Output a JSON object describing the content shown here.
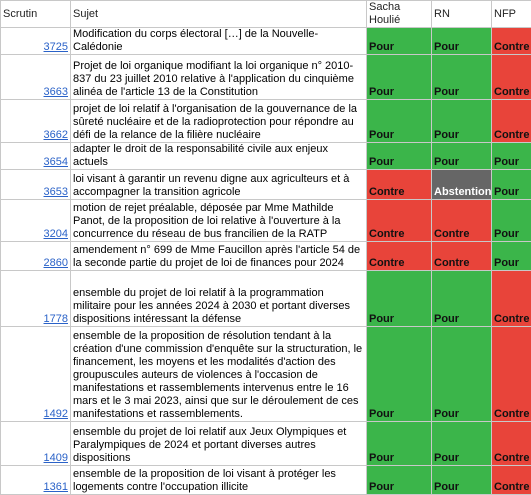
{
  "table": {
    "header": [
      "Scrutin",
      "Sujet",
      "Sacha Houlié",
      "RN",
      "NFP"
    ],
    "rows": [
      {
        "scrutin": "3725",
        "sujet": "Modification du corps électoral […] de la Nouvelle-Calédonie",
        "votes": [
          {
            "text": "Pour",
            "color": "#3bb54a"
          },
          {
            "text": "Pour",
            "color": "#3bb54a"
          },
          {
            "text": "Contre",
            "color": "#e8443a"
          }
        ]
      },
      {
        "scrutin": "3663",
        "sujet": "Projet de loi organique modifiant la loi organique n° 2010-837 du 23 juillet 2010 relative à l'application du cinquième alinéa de l'article 13 de la Constitution",
        "votes": [
          {
            "text": "Pour",
            "color": "#3bb54a"
          },
          {
            "text": "Pour",
            "color": "#3bb54a"
          },
          {
            "text": "Contre",
            "color": "#e8443a"
          }
        ]
      },
      {
        "scrutin": "3662",
        "sujet": "projet de loi relatif à l'organisation de la gouvernance de la sûreté nucléaire et de la radioprotection pour répondre au défi de la relance de la filière nucléaire",
        "votes": [
          {
            "text": "Pour",
            "color": "#3bb54a"
          },
          {
            "text": "Pour",
            "color": "#3bb54a"
          },
          {
            "text": "Contre",
            "color": "#e8443a"
          }
        ]
      },
      {
        "scrutin": "3654",
        "sujet": "adapter le droit de la responsabilité civile aux enjeux actuels",
        "votes": [
          {
            "text": "Pour",
            "color": "#3bb54a"
          },
          {
            "text": "Pour",
            "color": "#3bb54a"
          },
          {
            "text": "Pour",
            "color": "#3bb54a"
          }
        ]
      },
      {
        "scrutin": "3653",
        "sujet": "loi visant à garantir un revenu digne aux agriculteurs et à accompagner la transition agricole",
        "votes": [
          {
            "text": "Contre",
            "color": "#e8443a"
          },
          {
            "text": "Abstention",
            "color": "#666666"
          },
          {
            "text": "Pour",
            "color": "#3bb54a"
          }
        ]
      },
      {
        "scrutin": "3204",
        "sujet": "motion de rejet préalable, déposée par Mme Mathilde Panot, de la proposition de loi relative à l'ouverture à la concurrence du réseau de bus francilien de la RATP",
        "votes": [
          {
            "text": "Contre",
            "color": "#e8443a"
          },
          {
            "text": "Contre",
            "color": "#e8443a"
          },
          {
            "text": "Pour",
            "color": "#3bb54a"
          }
        ]
      },
      {
        "scrutin": "2860",
        "sujet": "amendement n° 699 de Mme Faucillon après l'article 54 de la seconde partie du projet de loi de finances pour 2024",
        "votes": [
          {
            "text": "Contre",
            "color": "#e8443a"
          },
          {
            "text": "Contre",
            "color": "#e8443a"
          },
          {
            "text": "Pour",
            "color": "#3bb54a"
          }
        ]
      },
      {
        "scrutin": "1778",
        "sujet": "ensemble du projet de loi relatif à la programmation militaire pour les années 2024 à 2030 et portant diverses dispositions intéressant la défense",
        "votes": [
          {
            "text": "Pour",
            "color": "#3bb54a"
          },
          {
            "text": "Pour",
            "color": "#3bb54a"
          },
          {
            "text": "Contre",
            "color": "#e8443a"
          }
        ]
      },
      {
        "scrutin": "1492",
        "sujet": "ensemble de la proposition de résolution tendant à la création d'une commission d'enquête sur la structuration, le financement, les moyens et les modalités d'action des groupuscules auteurs de violences à l'occasion de manifestations et rassemblements intervenus entre le 16 mars et le 3 mai 2023, ainsi que sur le déroulement de ces manifestations et rassemblements.",
        "votes": [
          {
            "text": "Pour",
            "color": "#3bb54a"
          },
          {
            "text": "Pour",
            "color": "#3bb54a"
          },
          {
            "text": "Contre",
            "color": "#e8443a"
          }
        ]
      },
      {
        "scrutin": "1409",
        "sujet": "ensemble du projet de loi relatif aux Jeux Olympiques et Paralympiques de 2024 et portant diverses autres dispositions",
        "votes": [
          {
            "text": "Pour",
            "color": "#3bb54a"
          },
          {
            "text": "Pour",
            "color": "#3bb54a"
          },
          {
            "text": "Contre",
            "color": "#e8443a"
          }
        ]
      },
      {
        "scrutin": "1361",
        "sujet": "ensemble de la proposition de loi visant à protéger les logements contre l'occupation illicite",
        "votes": [
          {
            "text": "Pour",
            "color": "#3bb54a"
          },
          {
            "text": "Pour",
            "color": "#3bb54a"
          },
          {
            "text": "Contre",
            "color": "#e8443a"
          }
        ]
      }
    ]
  }
}
